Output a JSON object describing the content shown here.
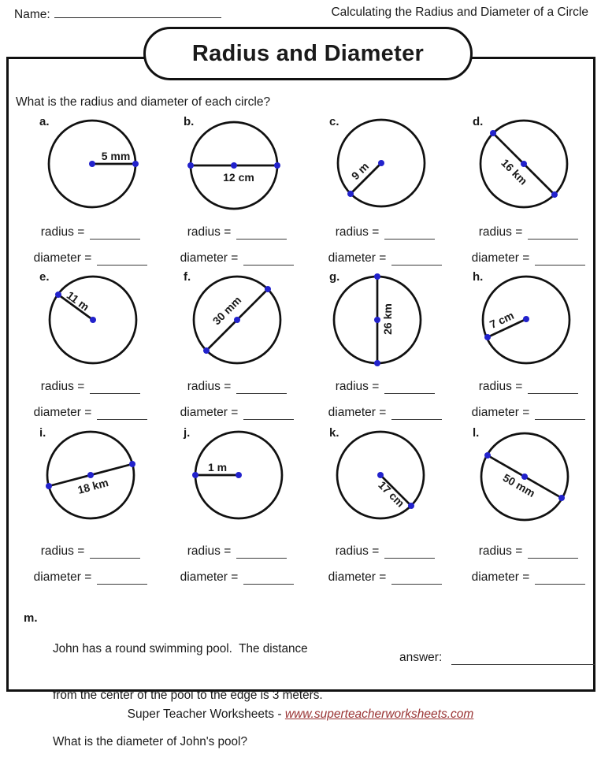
{
  "header": {
    "name_label": "Name:",
    "topic": "Calculating the Radius and Diameter of a Circle"
  },
  "title": "Radius and Diameter",
  "question": "What is the radius and diameter of each circle?",
  "answer_labels": {
    "radius": "radius =",
    "diameter": "diameter ="
  },
  "problems": [
    {
      "letter": "a.",
      "measurement": "5 mm",
      "type": "radius",
      "orientation": "horizontal-right"
    },
    {
      "letter": "b.",
      "measurement": "12 cm",
      "type": "diameter",
      "orientation": "horizontal"
    },
    {
      "letter": "c.",
      "measurement": "9 m",
      "type": "radius",
      "orientation": "diagonal-down-left"
    },
    {
      "letter": "d.",
      "measurement": "16 km",
      "type": "diameter",
      "orientation": "diagonal-down-right"
    },
    {
      "letter": "e.",
      "measurement": "11 m",
      "type": "radius",
      "orientation": "diagonal-up-left"
    },
    {
      "letter": "f.",
      "measurement": "30 mm",
      "type": "diameter",
      "orientation": "diagonal-up-right"
    },
    {
      "letter": "g.",
      "measurement": "26 km",
      "type": "diameter",
      "orientation": "vertical"
    },
    {
      "letter": "h.",
      "measurement": "7 cm",
      "type": "radius",
      "orientation": "shallow-down-left"
    },
    {
      "letter": "i.",
      "measurement": "18 km",
      "type": "diameter",
      "orientation": "shallow-rising"
    },
    {
      "letter": "j.",
      "measurement": "1 m",
      "type": "radius",
      "orientation": "horizontal-left"
    },
    {
      "letter": "k.",
      "measurement": "17 cm",
      "type": "radius",
      "orientation": "diagonal-down-right"
    },
    {
      "letter": "l.",
      "measurement": "50 mm",
      "type": "diameter",
      "orientation": "shallow-down-right"
    }
  ],
  "word_problem": {
    "letter": "m.",
    "lines": [
      "John has a round swimming pool.  The distance",
      "from the center of the pool to the edge is 3 meters.",
      "What is the diameter of John's pool?"
    ],
    "answer_label": "answer:"
  },
  "footer": {
    "prefix": "Super Teacher Worksheets - ",
    "link": "www.superteacherworksheets.com"
  },
  "colors": {
    "dot_blue": "#2222cc",
    "ink_black": "#111111",
    "link_maroon": "#993333"
  }
}
